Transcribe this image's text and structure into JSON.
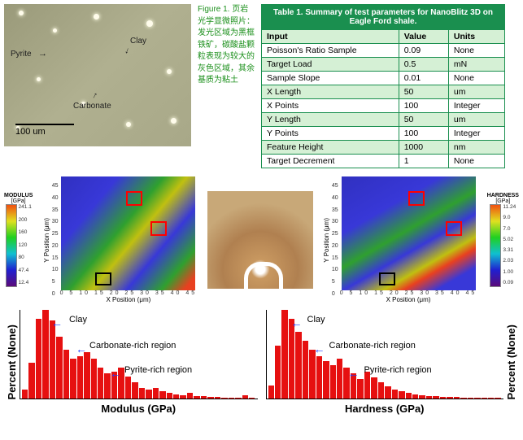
{
  "figure_caption": {
    "prefix": "Figure 1.",
    "text": "页岩光学显微照片：发光区域为黑框铁矿，碳酸盐颗粒表现为较大的灰色区域，其余基质为粘土"
  },
  "micrograph": {
    "labels": {
      "pyrite": "Pyrite",
      "clay": "Clay",
      "carbonate": "Carbonate"
    },
    "scale": "100 um"
  },
  "table": {
    "title": "Table 1. Summary of test parameters for NanoBlitz 3D on Eagle Ford shale.",
    "columns": [
      "Input",
      "Value",
      "Units"
    ],
    "rows": [
      [
        "Poisson's Ratio Sample",
        "0.09",
        "None"
      ],
      [
        "Target Load",
        "0.5",
        "mN"
      ],
      [
        "Sample Slope",
        "0.01",
        "None"
      ],
      [
        "X Length",
        "50",
        "um"
      ],
      [
        "X Points",
        "100",
        "Integer"
      ],
      [
        "Y Length",
        "50",
        "um"
      ],
      [
        "Y Points",
        "100",
        "Integer"
      ],
      [
        "Feature Height",
        "1000",
        "nm"
      ],
      [
        "Target Decrement",
        "1",
        "None"
      ]
    ],
    "header_bg": "#1a8f4f",
    "row_even_bg": "#d5f0d5"
  },
  "heatmaps": {
    "axis_x": "X Position (μm)",
    "axis_y": "Y Position (μm)",
    "modulus": {
      "title": "MODULUS",
      "unit": "[GPa]",
      "ticks": [
        "241.1",
        "200",
        "160",
        "120",
        "80",
        "47.4",
        "12.4"
      ]
    },
    "hardness": {
      "title": "HARDNESS",
      "unit": "[GPa]",
      "ticks": [
        "11.24",
        "9.0",
        "7.0",
        "5.02",
        "3.31",
        "2.03",
        "1.00",
        "0.09"
      ]
    },
    "xticks": "0  5  10  15  20  25  30  35  40  45",
    "yticks": [
      "45",
      "40",
      "35",
      "30",
      "25",
      "20",
      "15",
      "10",
      "5",
      "0"
    ]
  },
  "histograms": {
    "ylabel": "Percent (None)",
    "modulus": {
      "xlabel": "Modulus (GPa)",
      "annots": {
        "clay": "Clay",
        "carb": "Carbonate-rich region",
        "pyr": "Pyrite-rich region"
      },
      "bars": [
        10,
        40,
        90,
        100,
        88,
        70,
        55,
        45,
        48,
        52,
        45,
        35,
        28,
        30,
        35,
        25,
        18,
        12,
        10,
        12,
        8,
        6,
        5,
        4,
        6,
        3,
        3,
        2,
        2,
        1,
        1,
        1,
        4,
        1
      ]
    },
    "hardness": {
      "xlabel": "Hardness (GPa)",
      "annots": {
        "clay": "Clay",
        "carb": "Carbonate-rich region",
        "pyr": "Pyrite-rich region"
      },
      "bars": [
        15,
        60,
        100,
        90,
        75,
        65,
        55,
        48,
        42,
        38,
        45,
        35,
        28,
        22,
        30,
        24,
        18,
        14,
        10,
        8,
        6,
        5,
        4,
        3,
        3,
        2,
        2,
        2,
        1,
        1,
        1,
        1,
        1,
        1
      ]
    },
    "bar_color": "#e61010",
    "arrow_color": "#2040ff"
  }
}
